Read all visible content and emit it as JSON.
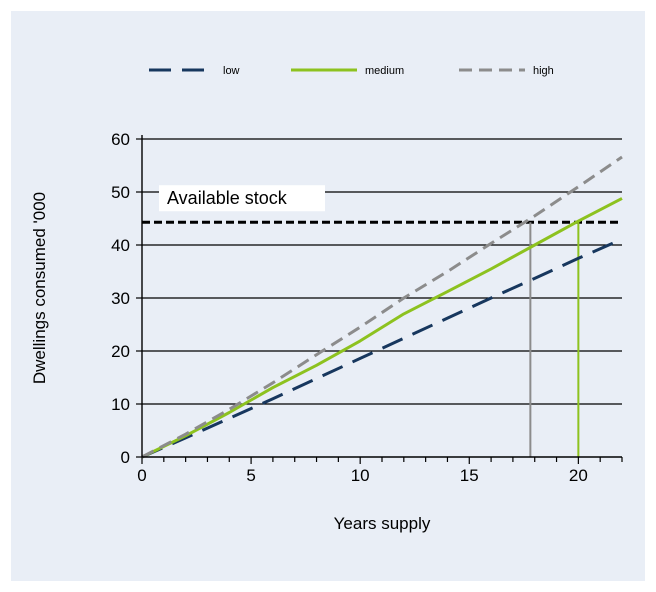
{
  "chart_data": {
    "type": "line",
    "xlabel": "Years supply",
    "ylabel": "Dwellings consumed '000",
    "xlim": [
      0,
      22
    ],
    "ylim": [
      0,
      60
    ],
    "xticks": [
      0,
      5,
      10,
      15,
      20
    ],
    "yticks": [
      0,
      10,
      20,
      30,
      40,
      50,
      60
    ],
    "grid": "horizontal",
    "legend_position": "top",
    "series": [
      {
        "name": "low",
        "color": "#17375e",
        "dash": "long-dash",
        "x": [
          0,
          2,
          4,
          6,
          8,
          10,
          12,
          14,
          16,
          18,
          20,
          22
        ],
        "y": [
          0,
          3.6,
          7.3,
          11,
          14.8,
          18.6,
          22.4,
          26.2,
          30,
          33.7,
          37.5,
          41.1
        ]
      },
      {
        "name": "medium",
        "color": "#8dc21f",
        "dash": "solid",
        "x": [
          0,
          2,
          4,
          6,
          8,
          10,
          12,
          14,
          16,
          18,
          20,
          22
        ],
        "y": [
          0,
          4,
          8.4,
          13.1,
          17.3,
          21.9,
          27,
          31.2,
          35.5,
          40,
          44.5,
          48.8
        ]
      },
      {
        "name": "high",
        "color": "#8c8c8c",
        "dash": "short-dash",
        "x": [
          0,
          2,
          4,
          6,
          8,
          10,
          12,
          14,
          16,
          18,
          20,
          22
        ],
        "y": [
          0,
          4.3,
          9,
          14,
          19.3,
          24.5,
          30,
          35,
          40.3,
          45.5,
          51,
          56.6
        ]
      }
    ],
    "reference_lines": [
      {
        "label": "Available stock",
        "y": 44.3,
        "color": "#000000",
        "dash": "dashed"
      }
    ],
    "markers": [
      {
        "series": "high",
        "x": 17.8,
        "y": 44.3,
        "color": "#8c8c8c"
      },
      {
        "series": "medium",
        "x": 20,
        "y": 44.3,
        "color": "#8dc21f"
      }
    ]
  }
}
